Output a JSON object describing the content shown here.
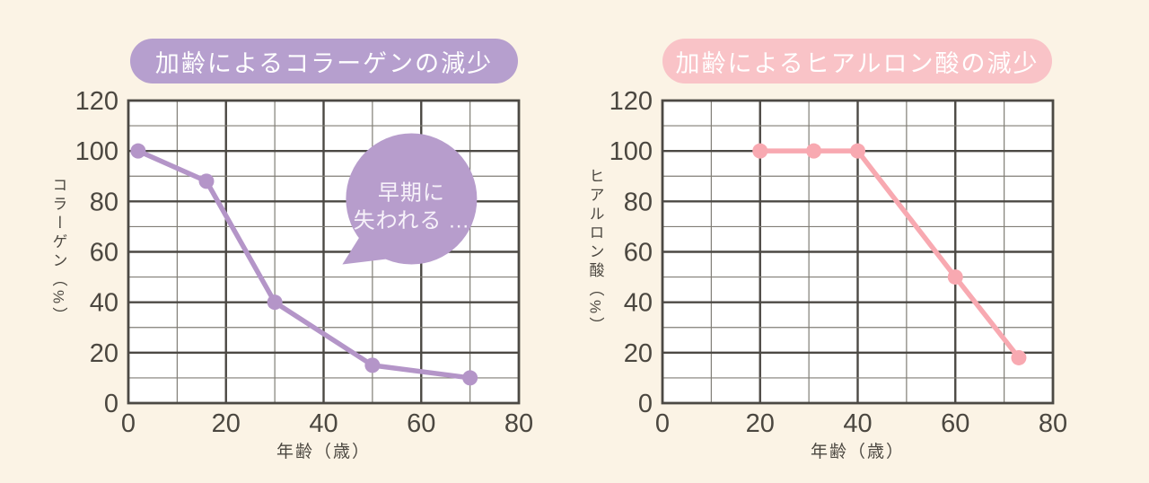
{
  "page": {
    "background_color": "#fbf3e5"
  },
  "chart_data": [
    {
      "type": "line",
      "title": "加齢によるコラーゲンの減少",
      "ylabel": "コラーゲン（%）",
      "xlabel": "年齢（歳）",
      "x": [
        2,
        16,
        30,
        50,
        70
      ],
      "values": [
        100,
        88,
        40,
        15,
        10
      ],
      "xlim": [
        0,
        80
      ],
      "ylim": [
        0,
        120
      ],
      "x_ticks": [
        0,
        20,
        40,
        60,
        80
      ],
      "y_ticks": [
        0,
        20,
        40,
        60,
        80,
        100,
        120
      ],
      "grid": {
        "minor_step": 10,
        "major_step": 20
      },
      "colors": {
        "pill": "#b69fce",
        "line": "#b495c8",
        "marker": "#b495c8",
        "grid_major": "#4c4944",
        "grid_minor": "#817e76",
        "tick_text": "#4b4740",
        "plot_bg": "#ffffff"
      },
      "annotation": {
        "lines": [
          "早期に",
          "失われる ..."
        ],
        "anchor_x": 58,
        "anchor_y": 81,
        "bubble_color": "#b79dcc",
        "text_color": "#f7f2fa"
      }
    },
    {
      "type": "line",
      "title": "加齢によるヒアルロン酸の減少",
      "ylabel": "ヒアルロン酸（%）",
      "xlabel": "年齢（歳）",
      "x": [
        20,
        31,
        40,
        60,
        73
      ],
      "values": [
        100,
        100,
        100,
        50,
        18
      ],
      "xlim": [
        0,
        80
      ],
      "ylim": [
        0,
        120
      ],
      "x_ticks": [
        0,
        20,
        40,
        60,
        80
      ],
      "y_ticks": [
        0,
        20,
        40,
        60,
        80,
        100,
        120
      ],
      "grid": {
        "minor_step": 10,
        "major_step": 20
      },
      "colors": {
        "pill": "#f9c3c7",
        "line": "#f8a9b1",
        "marker": "#f8a9b1",
        "grid_major": "#4c4944",
        "grid_minor": "#817e76",
        "tick_text": "#4b4740",
        "plot_bg": "#ffffff"
      },
      "annotation": null
    }
  ]
}
